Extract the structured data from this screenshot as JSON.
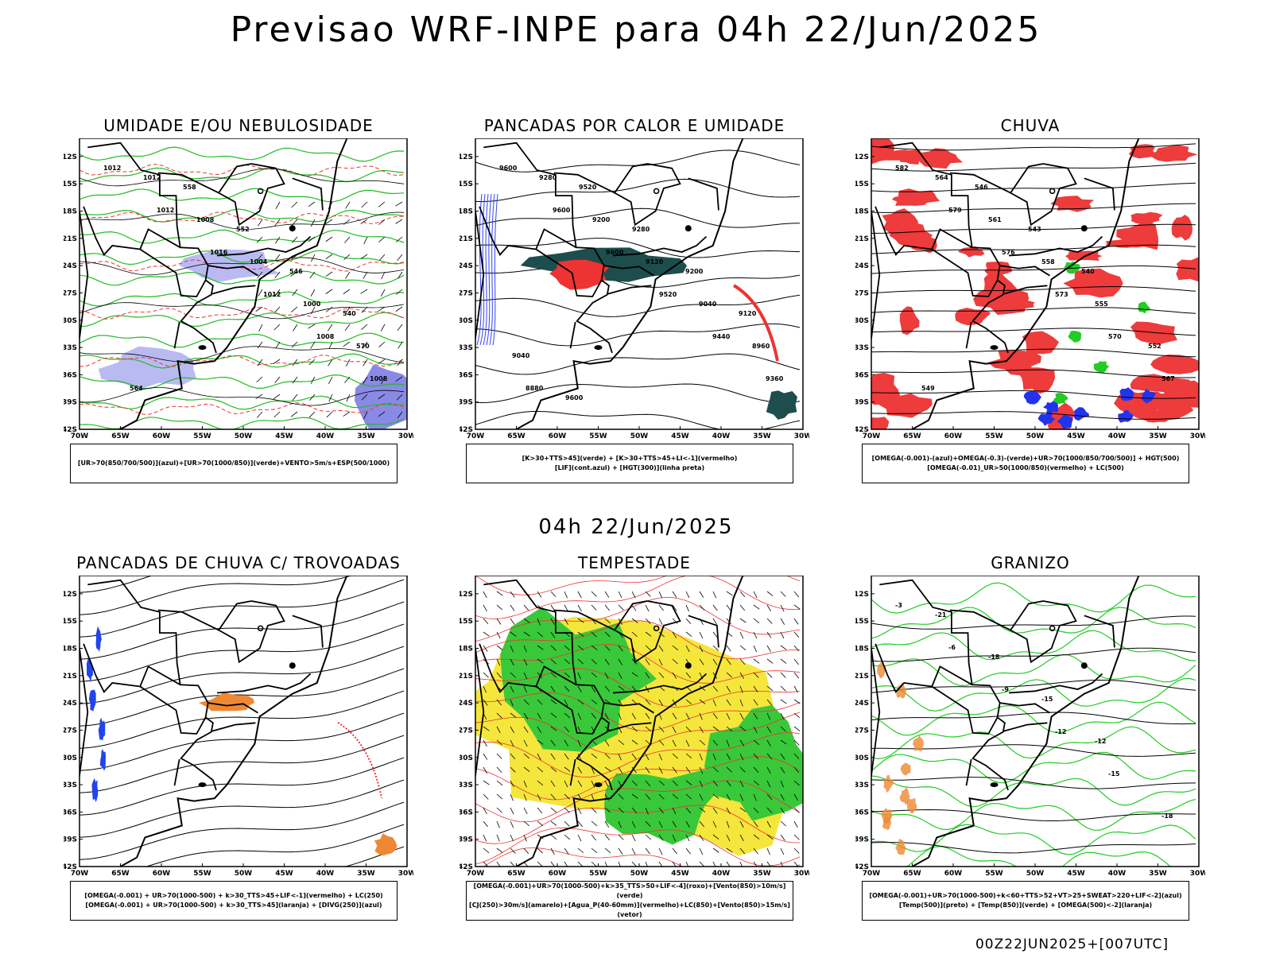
{
  "header": {
    "title": "Previsao WRF-INPE  para 04h 22/Jun/2025"
  },
  "mid_time": "04h 22/Jun/2025",
  "footer": "00Z22JUN2025+[007UTC]",
  "axes": {
    "lat_ticks": [
      "12S",
      "15S",
      "18S",
      "21S",
      "24S",
      "27S",
      "30S",
      "33S",
      "36S",
      "39S",
      "42S"
    ],
    "lon_ticks": [
      "70W",
      "65W",
      "60W",
      "55W",
      "50W",
      "45W",
      "40W",
      "35W",
      "30W"
    ]
  },
  "panels": [
    {
      "title": "UMIDADE E/OU NEBULOSIDADE",
      "legend": [
        "[UR>70(850/700/500)](azul)+[UR>70(1000/850)](verde)+VENTO>5m/s+ESP(500/1000)"
      ],
      "labels": [
        "1012",
        "1012",
        "1016",
        "1012",
        "1008",
        "1008",
        "1012",
        "1008",
        "1004",
        "1000",
        "570",
        "564",
        "558",
        "552",
        "546",
        "540"
      ]
    },
    {
      "title": "PANCADAS POR CALOR E UMIDADE",
      "legend": [
        "[K>30+TTS>45](verde) + [K>30+TTS>45+LI<-1](vermelho)",
        "[LIF](cont.azul) + [HGT(300)](linha preta)"
      ],
      "labels": [
        "9600",
        "9600",
        "9600",
        "9520",
        "9440",
        "9360",
        "9280",
        "9200",
        "9120",
        "9040",
        "8960",
        "8880",
        "9520",
        "9280",
        "9200",
        "9120",
        "9040",
        "9600"
      ]
    },
    {
      "title": "CHUVA",
      "legend": [
        "[OMEGA(-0.001)-(azul)+OMEGA(-0.3)-(verde)+UR>70(1000/850/700/500)] + HGT(500)",
        "[OMEGA(-0.01)_UR>50(1000/850)(vermelho) + LC(500)"
      ],
      "labels": [
        "582",
        "579",
        "576",
        "573",
        "570",
        "567",
        "564",
        "561",
        "558",
        "555",
        "552",
        "549",
        "546",
        "543",
        "540"
      ]
    },
    {
      "title": "PANCADAS DE CHUVA C/ TROVOADAS",
      "legend": [
        "[OMEGA(-0.001) + UR>70(1000-500) + k>30_TTS>45+LIF<-1](vermelho) + LC(250)",
        "[OMEGA(-0.001) + UR>70(1000-500) + k>30_TTS>45](laranja) + [DIVG(250)](azul)"
      ],
      "labels": []
    },
    {
      "title": "TEMPESTADE",
      "legend": [
        "[OMEGA(-0.001)+UR>70(1000-500)+k>35_TTS>50+LIF<-4](roxo)+[Vento(850)>10m/s](verde)",
        "[CJ(250)>30m/s](amarelo)+[Agua_P(40-60mm)](vermelho)+LC(850)+[Vento(850)>15m/s](vetor)"
      ],
      "labels": []
    },
    {
      "title": "GRANIZO",
      "legend": [
        "[OMEGA(-0.001)+UR>70(1000-500)+k<60+TTS>52+VT>25+SWEAT>220+LIF<-2](azul)",
        "[Temp(500)](preto) + [Temp(850)](verde) + [OMEGA(500)<-2](laranja)"
      ],
      "labels": [
        "-3",
        "-6",
        "-9",
        "-12",
        "-15",
        "-18",
        "-21",
        "-18",
        "-15",
        "-12"
      ]
    }
  ]
}
